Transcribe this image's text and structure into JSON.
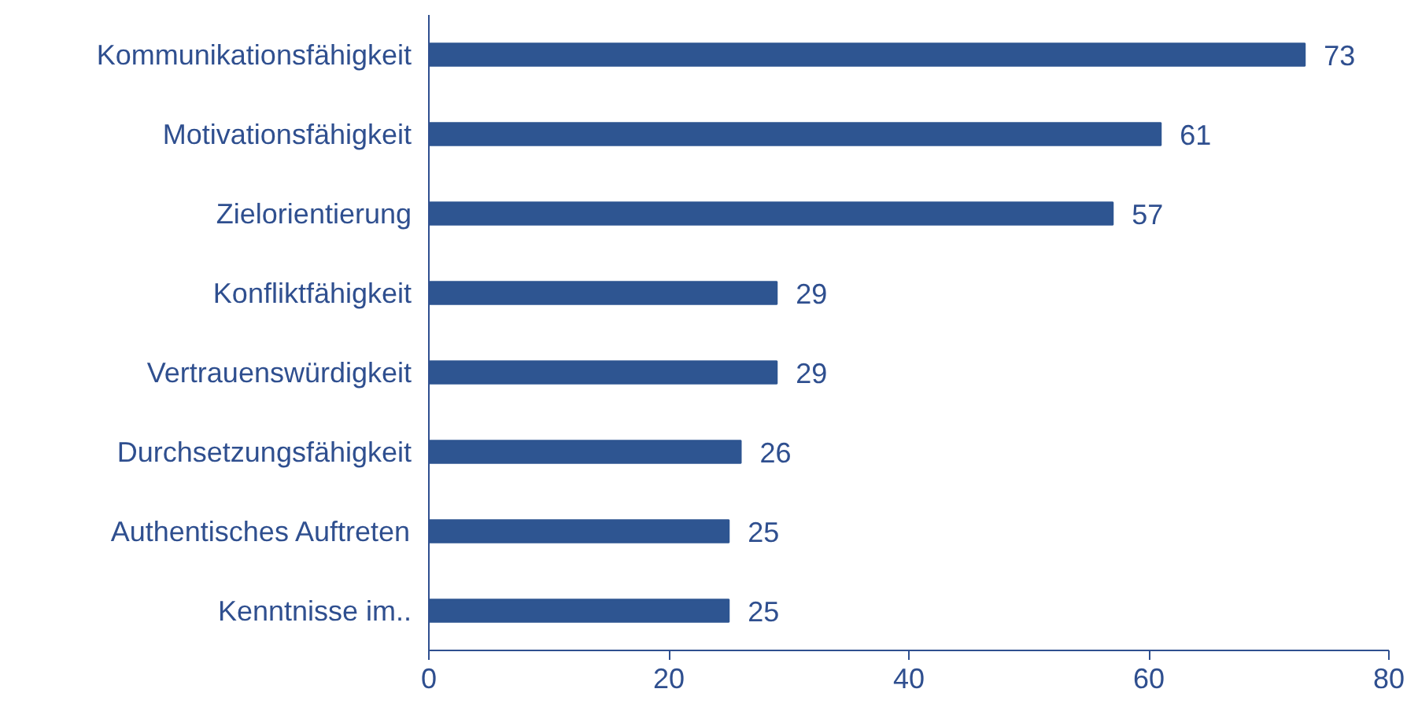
{
  "chart_data": {
    "type": "bar",
    "orientation": "horizontal",
    "categories": [
      "Kommunikationsfähigkeit",
      "Motivationsfähigkeit",
      "Zielorientierung",
      "Konfliktfähigkeit",
      "Vertrauenswürdigkeit",
      "Durchsetzungsfähigkeit",
      "Authentisches Auftreten",
      "Kenntnisse im.."
    ],
    "values": [
      73,
      61,
      57,
      29,
      29,
      26,
      25,
      25
    ],
    "color": "#2e5591",
    "xlim": [
      0,
      80
    ],
    "xticks": [
      0,
      20,
      40,
      60,
      80
    ],
    "grid": false,
    "data_labels": true
  }
}
